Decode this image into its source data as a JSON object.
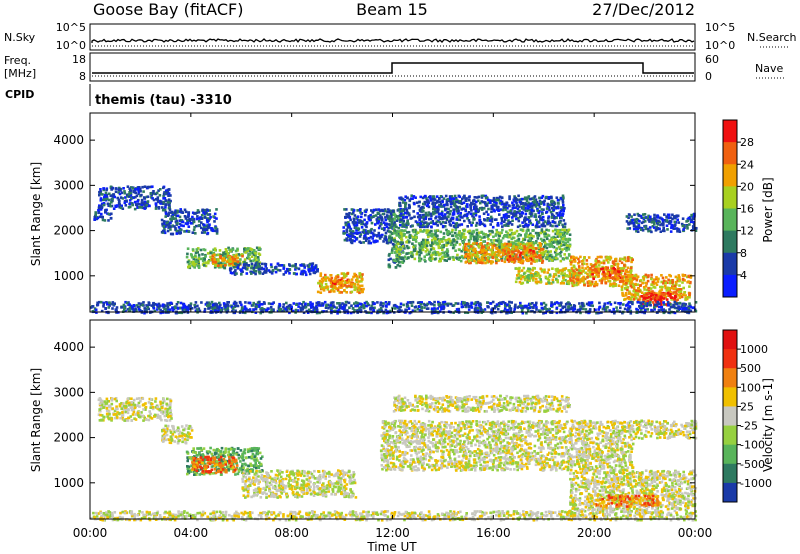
{
  "header": {
    "station": "Goose Bay (fitACF)",
    "beam": "Beam 15",
    "date": "27/Dec/2012"
  },
  "noise_panel": {
    "left_label": "N.Sky",
    "right_label": "N.Search",
    "ticks_left": [
      "10^5",
      "10^0"
    ],
    "ticks_right": [
      "10^5",
      "10^0"
    ]
  },
  "freq_panel": {
    "left_label_line1": "Freq.",
    "left_label_line2": "[MHz]",
    "right_label": "Nave",
    "ticks_left": [
      "18",
      "8"
    ],
    "ticks_right": [
      "60",
      "0"
    ]
  },
  "cpid": {
    "label": "CPID",
    "value": "themis (tau) -3310"
  },
  "time_axis": {
    "ticks": [
      "00:00",
      "04:00",
      "08:00",
      "12:00",
      "16:00",
      "20:00",
      "00:00"
    ],
    "label": "Time UT"
  },
  "chart_data": [
    {
      "type": "heatmap",
      "name": "power",
      "xlabel": "Time UT",
      "ylabel": "Slant Range [km]",
      "x_range_hours": [
        0,
        24
      ],
      "ylim": [
        200,
        4600
      ],
      "yticks": [
        "1000",
        "2000",
        "3000",
        "4000"
      ],
      "colorbar": {
        "label": "Power [dB]",
        "ticks": [
          "4",
          "8",
          "12",
          "16",
          "20",
          "24",
          "28"
        ],
        "colors": [
          "#0a1eff",
          "#1a3aa8",
          "#2e7a60",
          "#58b45a",
          "#a8d020",
          "#f0a000",
          "#f06010",
          "#f01010"
        ]
      },
      "regions": [
        {
          "t0": 0.1,
          "t1": 0.8,
          "r0": 2250,
          "r1": 2500,
          "level": 1
        },
        {
          "t0": 0.3,
          "t1": 3.2,
          "r0": 2500,
          "r1": 3000,
          "level": 1
        },
        {
          "t0": 2.8,
          "t1": 5.0,
          "r0": 1950,
          "r1": 2500,
          "level": 1
        },
        {
          "t0": 3.8,
          "t1": 6.7,
          "r0": 1200,
          "r1": 1650,
          "level": 3
        },
        {
          "t0": 4.8,
          "t1": 6.0,
          "r0": 1250,
          "r1": 1500,
          "level": 5
        },
        {
          "t0": 5.5,
          "t1": 9.0,
          "r0": 1050,
          "r1": 1300,
          "level": 1
        },
        {
          "t0": 9.0,
          "t1": 10.8,
          "r0": 650,
          "r1": 1100,
          "level": 5
        },
        {
          "t0": 9.5,
          "t1": 10.3,
          "r0": 750,
          "r1": 950,
          "level": 6
        },
        {
          "t0": 10.0,
          "t1": 12.0,
          "r0": 1750,
          "r1": 2500,
          "level": 1
        },
        {
          "t0": 11.8,
          "t1": 12.4,
          "r0": 1200,
          "r1": 2500,
          "level": 2
        },
        {
          "t0": 12.2,
          "t1": 18.8,
          "r0": 2100,
          "r1": 2800,
          "level": 1
        },
        {
          "t0": 12.0,
          "t1": 19.0,
          "r0": 1350,
          "r1": 2050,
          "level": 3
        },
        {
          "t0": 14.8,
          "t1": 18.0,
          "r0": 1300,
          "r1": 1750,
          "level": 5
        },
        {
          "t0": 16.5,
          "t1": 17.8,
          "r0": 1350,
          "r1": 1600,
          "level": 6
        },
        {
          "t0": 16.8,
          "t1": 19.5,
          "r0": 850,
          "r1": 1200,
          "level": 4
        },
        {
          "t0": 19.0,
          "t1": 21.5,
          "r0": 800,
          "r1": 1450,
          "level": 5
        },
        {
          "t0": 19.8,
          "t1": 21.0,
          "r0": 950,
          "r1": 1200,
          "level": 6
        },
        {
          "t0": 21.0,
          "t1": 23.8,
          "r0": 500,
          "r1": 1050,
          "level": 5
        },
        {
          "t0": 21.8,
          "t1": 23.2,
          "r0": 350,
          "r1": 650,
          "level": 7
        },
        {
          "t0": 21.2,
          "t1": 24.0,
          "r0": 2000,
          "r1": 2400,
          "level": 1
        },
        {
          "t0": 0.0,
          "t1": 24.0,
          "r0": 200,
          "r1": 450,
          "level": 1
        }
      ]
    },
    {
      "type": "heatmap",
      "name": "velocity",
      "xlabel": "Time UT",
      "ylabel": "Slant Range [km]",
      "x_range_hours": [
        0,
        24
      ],
      "ylim": [
        200,
        4600
      ],
      "yticks": [
        "1000",
        "2000",
        "3000",
        "4000"
      ],
      "colorbar": {
        "label": "Velocity [m s-1]",
        "ticks": [
          "1000",
          "500",
          "100",
          "25",
          "-25",
          "-100",
          "-500",
          "-1000"
        ],
        "colors": [
          "#1a3aa8",
          "#2e7a60",
          "#58b45a",
          "#96d040",
          "#c8c8c0",
          "#f0c000",
          "#f08010",
          "#f03010",
          "#e01010"
        ]
      },
      "regions": [
        {
          "t0": 0.3,
          "t1": 3.2,
          "r0": 2400,
          "r1": 2900,
          "level": 4
        },
        {
          "t0": 2.8,
          "t1": 4.0,
          "r0": 1900,
          "r1": 2300,
          "level": 4
        },
        {
          "t0": 3.8,
          "t1": 6.8,
          "r0": 1200,
          "r1": 1800,
          "level": 2
        },
        {
          "t0": 4.0,
          "t1": 5.8,
          "r0": 1250,
          "r1": 1600,
          "level": 6
        },
        {
          "t0": 6.0,
          "t1": 10.5,
          "r0": 700,
          "r1": 1300,
          "level": 4
        },
        {
          "t0": 11.5,
          "t1": 21.5,
          "r0": 1300,
          "r1": 2400,
          "level": 4
        },
        {
          "t0": 12.0,
          "t1": 19.0,
          "r0": 2600,
          "r1": 2950,
          "level": 4
        },
        {
          "t0": 19.0,
          "t1": 24.0,
          "r0": 400,
          "r1": 1300,
          "level": 4
        },
        {
          "t0": 21.5,
          "t1": 24.0,
          "r0": 2000,
          "r1": 2400,
          "level": 4
        },
        {
          "t0": 20.0,
          "t1": 22.5,
          "r0": 500,
          "r1": 750,
          "level": 6
        },
        {
          "t0": 0.0,
          "t1": 24.0,
          "r0": 200,
          "r1": 400,
          "level": 4
        }
      ]
    }
  ]
}
